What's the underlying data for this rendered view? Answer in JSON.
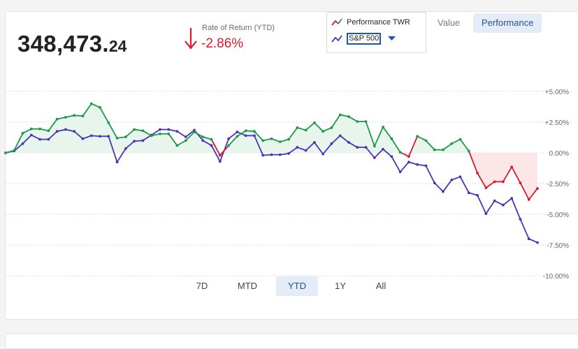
{
  "header": {
    "balance_main": "348,473.",
    "balance_cents": "24",
    "ror_label": "Rate of Return (YTD)",
    "ror_value": "-2.86%"
  },
  "legend": {
    "series1_label": "Performance TWR",
    "series2_label": "S&P 500"
  },
  "view_toggle": {
    "value_label": "Value",
    "performance_label": "Performance",
    "active": "Performance"
  },
  "ranges": {
    "items": [
      "7D",
      "MTD",
      "YTD",
      "1Y",
      "All"
    ],
    "active": "YTD"
  },
  "colors": {
    "positive": "#1b9a48",
    "negative": "#d71b2b",
    "benchmark": "#4a35b5",
    "pos_fill": "#e6f4ea",
    "neg_fill": "#fde3e5",
    "grid": "#cfcfcf",
    "axis_text": "#6b6b6b"
  },
  "chart_data": {
    "type": "line",
    "ylim": [
      -10,
      5
    ],
    "yticks": [
      "+5.00%",
      "+2.50%",
      "0.00%",
      "-2.50%",
      "-5.00%",
      "-7.50%",
      "-10.00%"
    ],
    "yticks_values": [
      5,
      2.5,
      0,
      -2.5,
      -5,
      -7.5,
      -10
    ],
    "grid": true,
    "xlabel": "",
    "ylabel": "",
    "series": [
      {
        "name": "Performance TWR",
        "values": [
          0,
          0.2,
          1.6,
          1.95,
          1.95,
          1.8,
          2.75,
          2.9,
          3.05,
          3.0,
          4.0,
          3.7,
          2.45,
          1.2,
          1.3,
          1.9,
          1.8,
          1.4,
          1.55,
          1.55,
          0.6,
          1.0,
          1.7,
          1.3,
          1.1,
          -0.2,
          0.6,
          1.35,
          1.8,
          1.75,
          1.0,
          1.15,
          0.9,
          1.1,
          2.05,
          1.85,
          2.45,
          1.75,
          2.05,
          3.1,
          2.95,
          2.55,
          2.55,
          0.55,
          2.1,
          1.15,
          0.05,
          -0.3,
          1.35,
          1.0,
          0.25,
          0.25,
          0.75,
          1.1,
          0.15,
          -1.65,
          -2.85,
          -2.35,
          -2.35,
          -1.15,
          -2.45,
          -3.8,
          -2.9
        ]
      },
      {
        "name": "S&P 500",
        "values": [
          0,
          0.15,
          0.75,
          1.45,
          1.1,
          1.1,
          1.75,
          1.9,
          1.75,
          1.15,
          1.4,
          1.35,
          1.35,
          -0.75,
          0.35,
          0.95,
          1.0,
          1.45,
          1.9,
          1.9,
          1.75,
          1.3,
          1.85,
          1.0,
          0.6,
          -0.7,
          1.15,
          1.7,
          1.4,
          1.4,
          -0.2,
          -0.15,
          -0.15,
          -0.05,
          0.45,
          0.2,
          0.85,
          -0.1,
          0.75,
          1.4,
          0.85,
          0.45,
          0.45,
          -0.4,
          0.3,
          -0.3,
          -1.55,
          -0.75,
          -0.95,
          -1.05,
          -2.45,
          -3.15,
          -2.2,
          -1.95,
          -3.25,
          -3.45,
          -4.95,
          -3.9,
          -4.25,
          -3.7,
          -5.4,
          -7.0,
          -7.3
        ]
      }
    ]
  }
}
